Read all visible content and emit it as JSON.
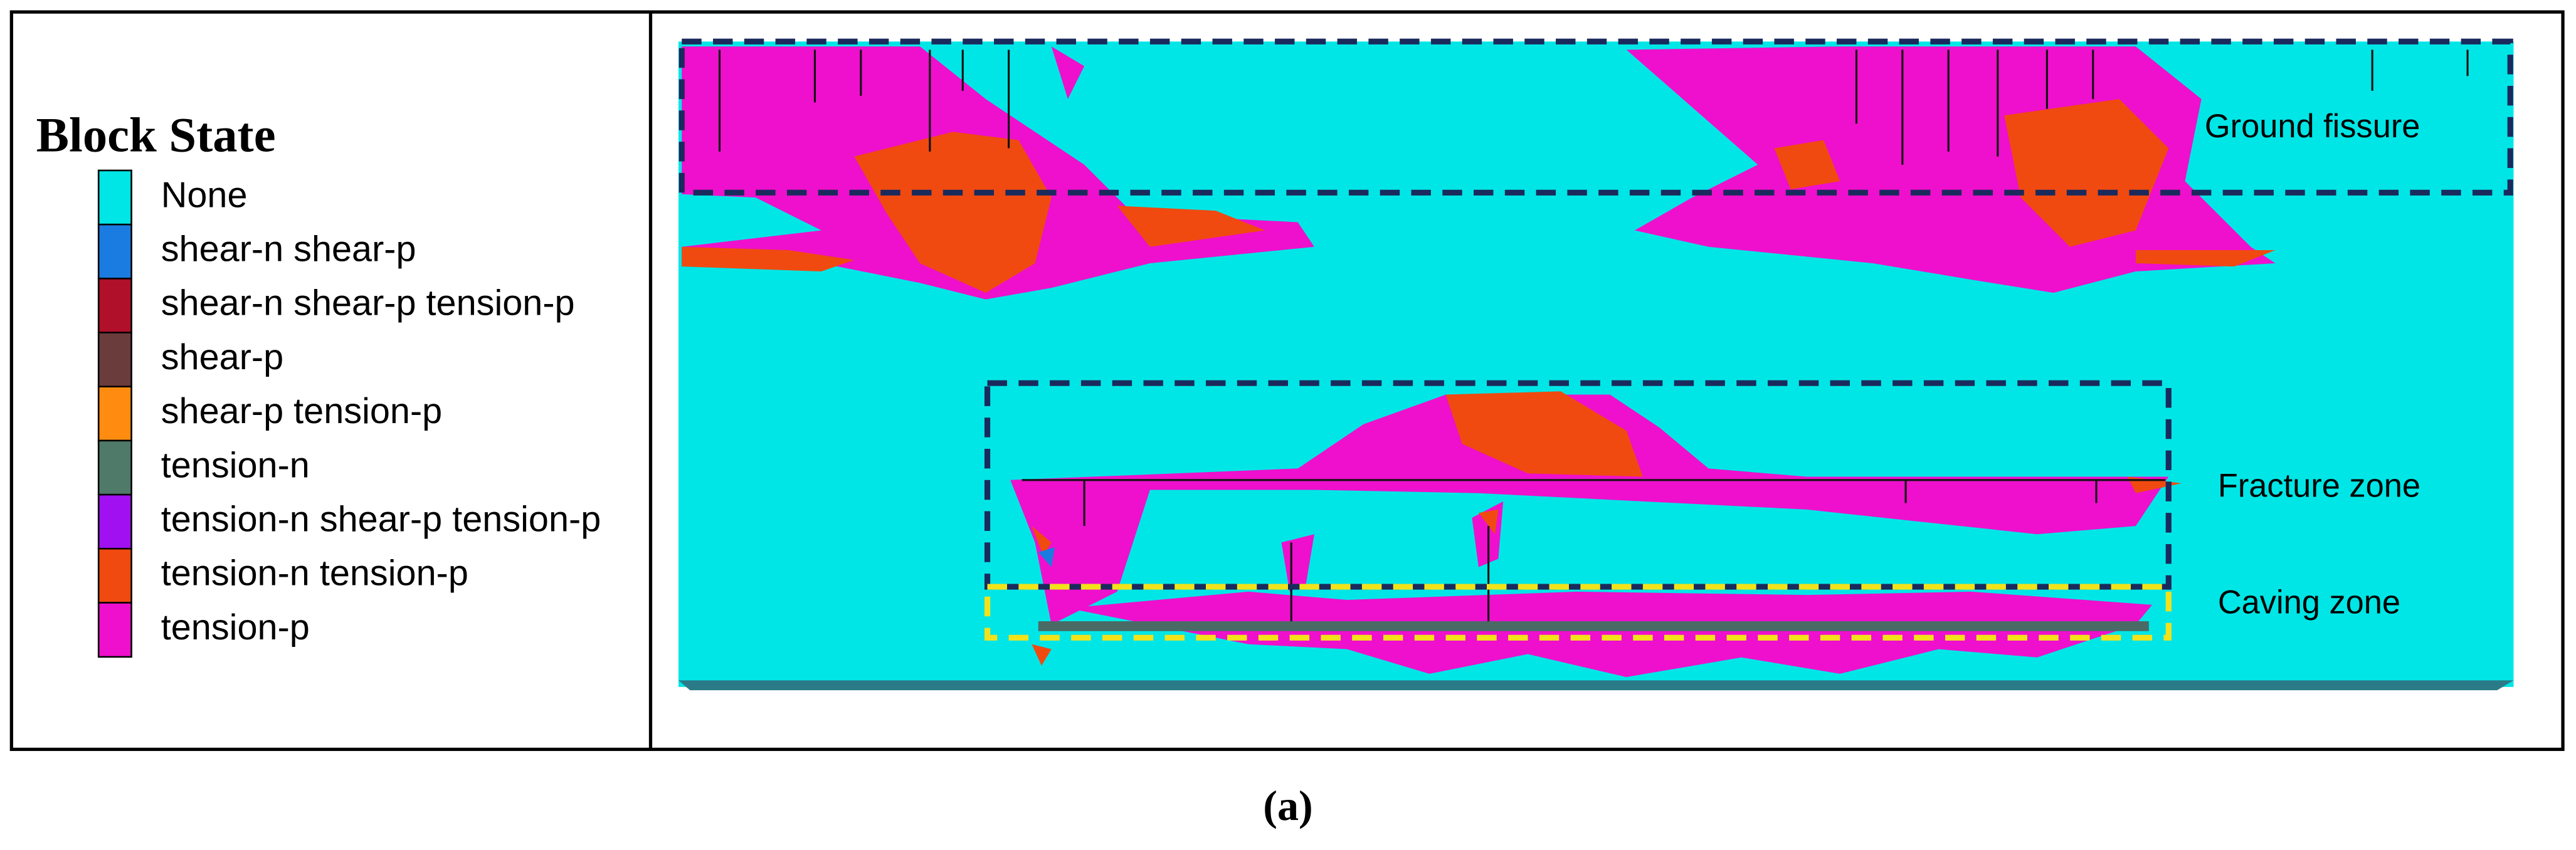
{
  "legend": {
    "title": "Block State",
    "items": [
      {
        "label": "None",
        "color": "#00e6e6"
      },
      {
        "label": "shear-n shear-p",
        "color": "#1a7ce0"
      },
      {
        "label": "shear-n shear-p tension-p",
        "color": "#b0102a"
      },
      {
        "label": "shear-p",
        "color": "#6b3c3c"
      },
      {
        "label": "shear-p tension-p",
        "color": "#ff8c10"
      },
      {
        "label": "tension-n",
        "color": "#4f7a6a"
      },
      {
        "label": "tension-n shear-p tension-p",
        "color": "#a010f0"
      },
      {
        "label": "tension-n tension-p",
        "color": "#f04a10"
      },
      {
        "label": "tension-p",
        "color": "#ee10cc"
      }
    ]
  },
  "annotations": [
    "Ground fissure",
    "Fracture zone",
    "Caving zone"
  ],
  "caption": "(a)"
}
